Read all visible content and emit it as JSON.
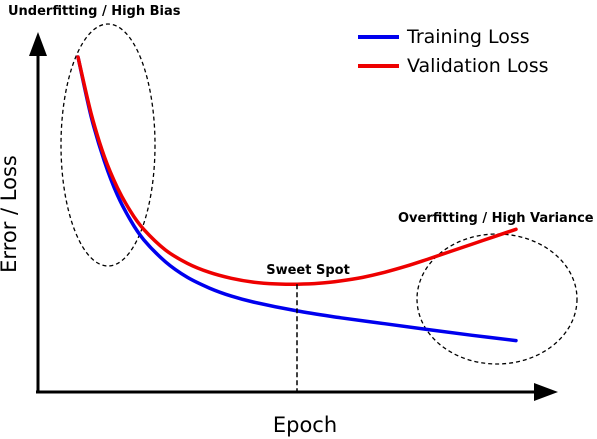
{
  "chart_data": {
    "type": "line",
    "xlabel": "Epoch",
    "ylabel": "Error / Loss",
    "grid": false,
    "legend": "top-right",
    "series": [
      {
        "name": "Training Loss",
        "color": "#0000ee",
        "x": [
          0.0,
          0.03,
          0.06,
          0.09,
          0.12,
          0.15,
          0.2,
          0.25,
          0.3,
          0.35,
          0.4,
          0.5,
          0.6,
          0.7,
          0.8,
          0.9,
          1.0
        ],
        "y": [
          1.0,
          0.8,
          0.65,
          0.535,
          0.45,
          0.385,
          0.31,
          0.258,
          0.222,
          0.195,
          0.175,
          0.145,
          0.122,
          0.102,
          0.082,
          0.063,
          0.045
        ]
      },
      {
        "name": "Validation Loss",
        "color": "#ee0000",
        "x": [
          0.0,
          0.03,
          0.06,
          0.09,
          0.12,
          0.15,
          0.2,
          0.25,
          0.3,
          0.35,
          0.4,
          0.45,
          0.5,
          0.55,
          0.6,
          0.65,
          0.7,
          0.75,
          0.8,
          0.85,
          0.9,
          0.95,
          1.0
        ],
        "y": [
          1.0,
          0.81,
          0.665,
          0.56,
          0.48,
          0.42,
          0.35,
          0.305,
          0.275,
          0.255,
          0.242,
          0.236,
          0.235,
          0.238,
          0.246,
          0.258,
          0.275,
          0.296,
          0.32,
          0.345,
          0.37,
          0.395,
          0.42
        ]
      }
    ],
    "annotations": [
      {
        "label": "Underfitting / High Bias"
      },
      {
        "label": "Sweet Spot"
      },
      {
        "label": "Overfitting / High Variance"
      }
    ]
  }
}
